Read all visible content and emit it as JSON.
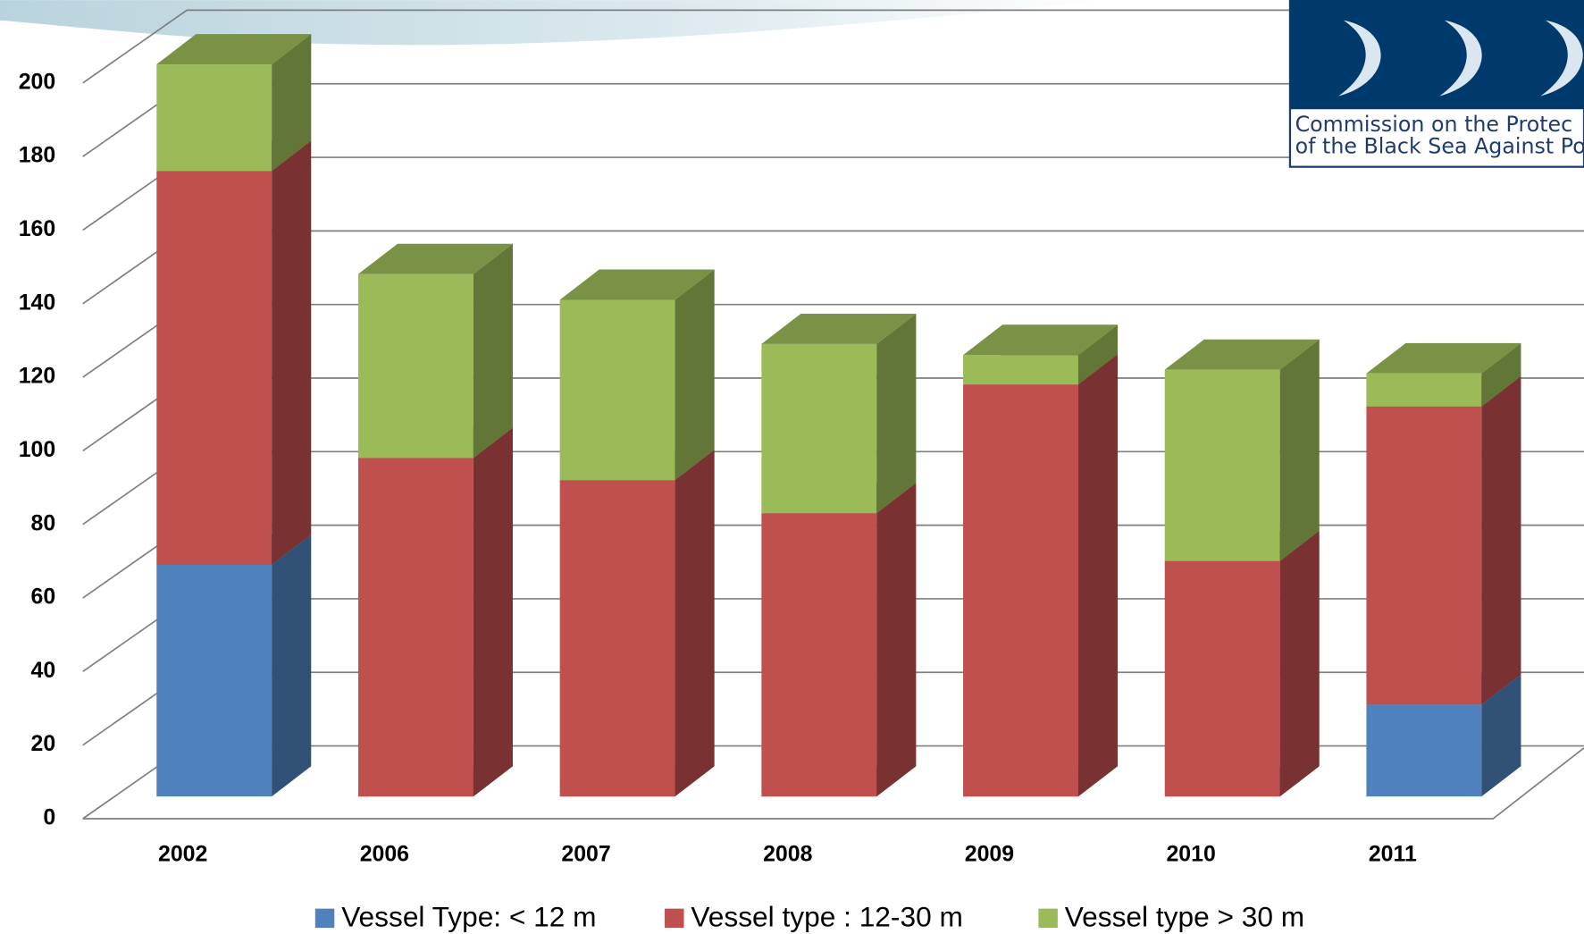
{
  "chart_data": {
    "type": "bar3d_stacked",
    "categories": [
      "2002",
      "2006",
      "2007",
      "2008",
      "2009",
      "2010",
      "2011"
    ],
    "series": [
      {
        "name": "Vessel Type: < 12 m",
        "color": "#4f81bd",
        "values": [
          63,
          0,
          0,
          0,
          0,
          0,
          25
        ]
      },
      {
        "name": "Vessel type : 12-30 m",
        "color": "#c0504d",
        "values": [
          107,
          92,
          86,
          77,
          112,
          64,
          81
        ]
      },
      {
        "name": "Vessel type > 30 m",
        "color": "#9bbb59",
        "values": [
          29,
          50,
          49,
          46,
          8,
          52,
          9
        ]
      }
    ],
    "ylim": [
      0,
      200
    ],
    "yticks": [
      0,
      20,
      40,
      60,
      80,
      100,
      120,
      140,
      160,
      180,
      200
    ],
    "grid": true,
    "legend": "bottom"
  },
  "logo": {
    "lines": [
      "Commission on the Protec",
      "of the Black Sea Against Pollu"
    ]
  }
}
